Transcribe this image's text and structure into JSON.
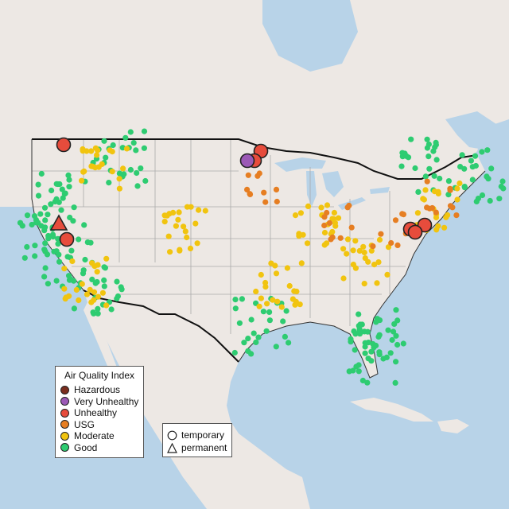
{
  "legend": {
    "title": "Air Quality Index",
    "categories": [
      {
        "label": "Hazardous",
        "color": "#7a2e1e"
      },
      {
        "label": "Very Unhealthy",
        "color": "#9b59b6"
      },
      {
        "label": "Unhealthy",
        "color": "#e74c3c"
      },
      {
        "label": "USG",
        "color": "#e67e22"
      },
      {
        "label": "Moderate",
        "color": "#f1c40f"
      },
      {
        "label": "Good",
        "color": "#2ecc71"
      }
    ]
  },
  "type_legend": {
    "temporary_label": "temporary",
    "permanent_label": "permanent"
  },
  "colors": {
    "ocean": "#b8d3e8",
    "land": "#ede8e4",
    "border": "#111111",
    "no_data": "#bbbbbb"
  },
  "map_data": {
    "good_clusters": [
      [
        75,
        250
      ],
      [
        60,
        290
      ],
      [
        90,
        330
      ],
      [
        120,
        360
      ],
      [
        470,
        450
      ],
      [
        610,
        220
      ],
      [
        540,
        210
      ],
      [
        480,
        420
      ],
      [
        330,
        410
      ],
      [
        150,
        200
      ]
    ],
    "moderate_clusters": [
      [
        130,
        210
      ],
      [
        105,
        355
      ],
      [
        230,
        290
      ],
      [
        400,
        280
      ],
      [
        460,
        330
      ],
      [
        550,
        260
      ],
      [
        350,
        360
      ]
    ],
    "usg_clusters": [
      [
        430,
        280
      ],
      [
        490,
        290
      ],
      [
        555,
        250
      ],
      [
        330,
        240
      ]
    ],
    "big_markers": [
      {
        "type": "temporary",
        "level": "Unhealthy",
        "pos": [
          80,
          182
        ]
      },
      {
        "type": "temporary",
        "level": "Unhealthy",
        "pos": [
          328,
          190
        ]
      },
      {
        "type": "temporary",
        "level": "Unhealthy",
        "pos": [
          320,
          202
        ]
      },
      {
        "type": "temporary",
        "level": "Very Unhealthy",
        "pos": [
          311,
          202
        ]
      },
      {
        "type": "permanent",
        "level": "Unhealthy",
        "pos": [
          74,
          281
        ]
      },
      {
        "type": "temporary",
        "level": "Unhealthy",
        "pos": [
          84,
          301
        ]
      },
      {
        "type": "temporary",
        "level": "Unhealthy",
        "pos": [
          516,
          288
        ]
      },
      {
        "type": "temporary",
        "level": "Unhealthy",
        "pos": [
          534,
          283
        ]
      },
      {
        "type": "temporary",
        "level": "Unhealthy",
        "pos": [
          522,
          292
        ]
      }
    ]
  }
}
